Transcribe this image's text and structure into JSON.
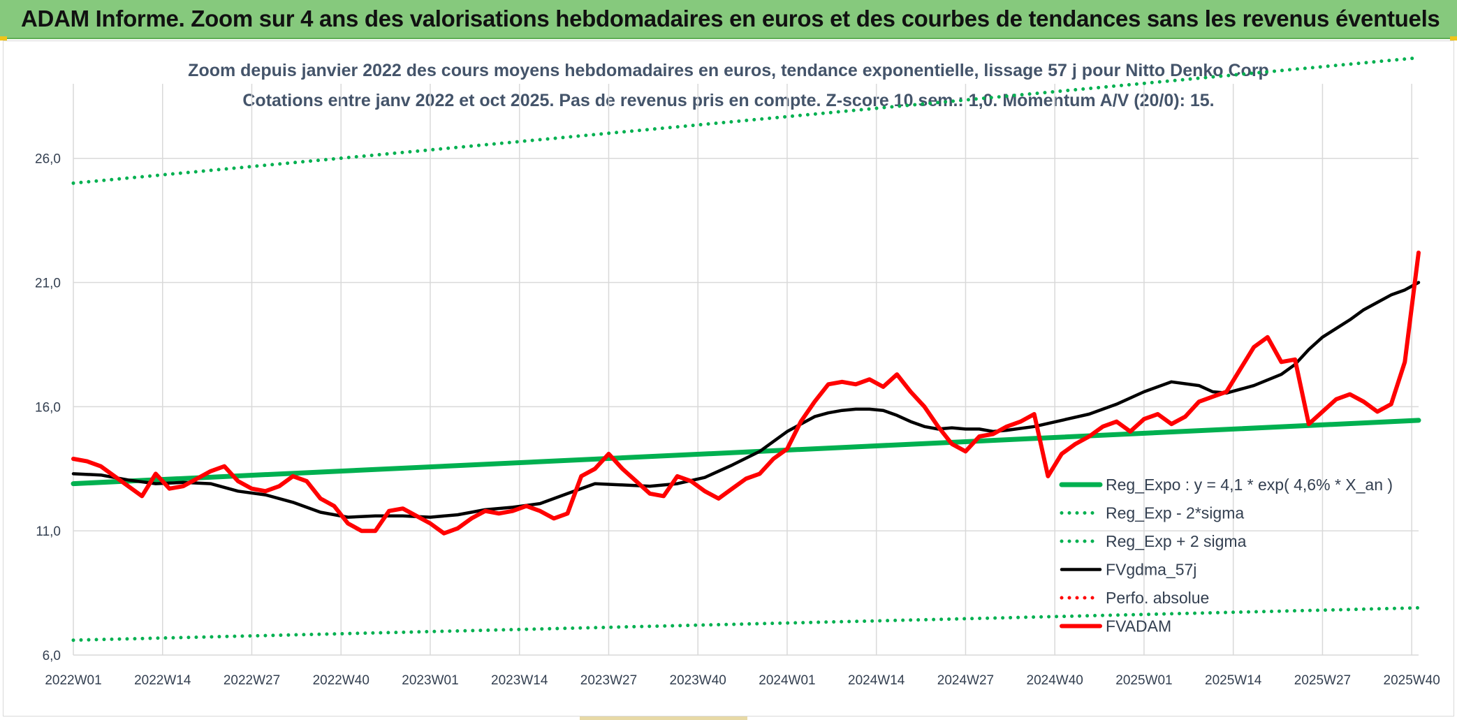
{
  "header": {
    "title": "ADAM Informe. Zoom sur 4 ans des valorisations hebdomadaires en euros et des courbes de tendances sans les revenus éventuels"
  },
  "colors": {
    "banner": "#86c97d",
    "regression": "#00b050",
    "smoothed": "#000000",
    "price": "#ff0000",
    "grid": "#d9d9d9"
  },
  "chart_data": {
    "type": "line",
    "subtitle_line1": "Zoom depuis janvier 2022  des cours moyens hebdomadaires en euros, tendance exponentielle, lissage 57 j pour Nitto Denko Corp",
    "subtitle_line2": "Cotations entre janv 2022 et oct 2025. Pas de revenus pris en compte. Z-score 10 sem.: 1,0. Momentum A/V (20/0): 15.",
    "ylim": [
      6.0,
      29.0
    ],
    "yticks": [
      6.0,
      11.0,
      16.0,
      21.0,
      26.0
    ],
    "ytick_labels": [
      "6,0",
      "11,0",
      "16,0",
      "21,0",
      "26,0"
    ],
    "xlim": [
      0,
      196
    ],
    "xticks": [
      0,
      13,
      26,
      39,
      52,
      65,
      78,
      91,
      104,
      117,
      130,
      143,
      156,
      169,
      182,
      195
    ],
    "xtick_labels": [
      "2022W01",
      "2022W14",
      "2022W27",
      "2022W40",
      "2023W01",
      "2023W14",
      "2023W27",
      "2023W40",
      "2024W01",
      "2024W14",
      "2024W27",
      "2024W40",
      "2025W01",
      "2025W14",
      "2025W27",
      "2025W40"
    ],
    "grid": true,
    "legend_position": "bottom-right",
    "series": [
      {
        "name": "Reg_Expo : y = 4,1 * exp( 4,6% *  X_an )",
        "style": "solid-thick",
        "color": "#00b050",
        "x": [
          0,
          196
        ],
        "values": [
          12.9,
          15.45
        ]
      },
      {
        "name": "Reg_Exp - 2*sigma",
        "style": "dotted",
        "color": "#00b050",
        "x": [
          0,
          196
        ],
        "values": [
          6.6,
          7.9
        ]
      },
      {
        "name": "Reg_Exp + 2 sigma",
        "style": "dotted",
        "color": "#00b050",
        "x": [
          0,
          196
        ],
        "values": [
          25.0,
          30.05
        ]
      },
      {
        "name": "FVgdma_57j",
        "style": "solid",
        "color": "#000000",
        "x": [
          0,
          4,
          8,
          12,
          16,
          20,
          24,
          28,
          32,
          36,
          40,
          44,
          48,
          52,
          56,
          60,
          64,
          68,
          72,
          76,
          80,
          84,
          88,
          92,
          96,
          100,
          104,
          108,
          110,
          112,
          114,
          116,
          118,
          120,
          122,
          124,
          126,
          128,
          130,
          132,
          134,
          136,
          140,
          144,
          148,
          152,
          156,
          160,
          164,
          166,
          168,
          172,
          176,
          178,
          180,
          182,
          184,
          186,
          188,
          190,
          192,
          194,
          196
        ],
        "values": [
          13.3,
          13.25,
          13.05,
          12.9,
          12.95,
          12.9,
          12.6,
          12.45,
          12.15,
          11.75,
          11.55,
          11.6,
          11.6,
          11.55,
          11.65,
          11.85,
          11.95,
          12.1,
          12.5,
          12.9,
          12.85,
          12.8,
          12.9,
          13.15,
          13.65,
          14.2,
          15.0,
          15.6,
          15.75,
          15.85,
          15.9,
          15.9,
          15.85,
          15.65,
          15.4,
          15.2,
          15.1,
          15.15,
          15.1,
          15.1,
          15.0,
          15.05,
          15.2,
          15.45,
          15.7,
          16.1,
          16.6,
          17.0,
          16.85,
          16.6,
          16.55,
          16.85,
          17.3,
          17.7,
          18.3,
          18.8,
          19.15,
          19.5,
          19.9,
          20.2,
          20.5,
          20.7,
          21.0
        ]
      },
      {
        "name": "Perfo. absolue",
        "style": "dotted",
        "color": "#ff0000",
        "x": [],
        "values": []
      },
      {
        "name": "FVADAM",
        "style": "solid-thick",
        "color": "#ff0000",
        "x": [
          0,
          2,
          4,
          6,
          8,
          10,
          12,
          14,
          16,
          18,
          20,
          22,
          24,
          26,
          28,
          30,
          32,
          34,
          36,
          38,
          40,
          42,
          44,
          46,
          48,
          50,
          52,
          54,
          56,
          58,
          60,
          62,
          64,
          66,
          68,
          70,
          72,
          74,
          76,
          78,
          80,
          82,
          84,
          86,
          88,
          90,
          92,
          94,
          96,
          98,
          100,
          102,
          104,
          106,
          108,
          110,
          112,
          114,
          116,
          118,
          120,
          122,
          124,
          126,
          128,
          130,
          132,
          134,
          136,
          138,
          140,
          142,
          144,
          146,
          148,
          150,
          152,
          154,
          156,
          158,
          160,
          162,
          164,
          166,
          168,
          170,
          172,
          174,
          176,
          178,
          180,
          182,
          184,
          186,
          188,
          190,
          192,
          194,
          196
        ],
        "values": [
          13.9,
          13.8,
          13.6,
          13.2,
          12.8,
          12.4,
          13.3,
          12.7,
          12.8,
          13.1,
          13.4,
          13.6,
          13.0,
          12.7,
          12.6,
          12.8,
          13.2,
          13.0,
          12.3,
          12.0,
          11.3,
          11.0,
          11.0,
          11.8,
          11.9,
          11.6,
          11.3,
          10.9,
          11.1,
          11.5,
          11.8,
          11.7,
          11.8,
          12.0,
          11.8,
          11.5,
          11.7,
          13.2,
          13.5,
          14.1,
          13.5,
          13.0,
          12.5,
          12.4,
          13.2,
          13.0,
          12.6,
          12.3,
          12.7,
          13.1,
          13.3,
          13.9,
          14.3,
          15.4,
          16.2,
          16.9,
          17.0,
          16.9,
          17.1,
          16.8,
          17.3,
          16.6,
          16.0,
          15.2,
          14.5,
          14.2,
          14.8,
          14.9,
          15.2,
          15.4,
          15.7,
          13.2,
          14.1,
          14.5,
          14.8,
          15.2,
          15.4,
          15.0,
          15.5,
          15.7,
          15.3,
          15.6,
          16.2,
          16.4,
          16.6,
          17.5,
          18.4,
          18.8,
          17.8,
          17.9,
          15.3,
          15.8,
          16.3,
          16.5,
          16.2,
          15.8,
          16.1,
          17.8,
          22.2
        ]
      }
    ]
  }
}
